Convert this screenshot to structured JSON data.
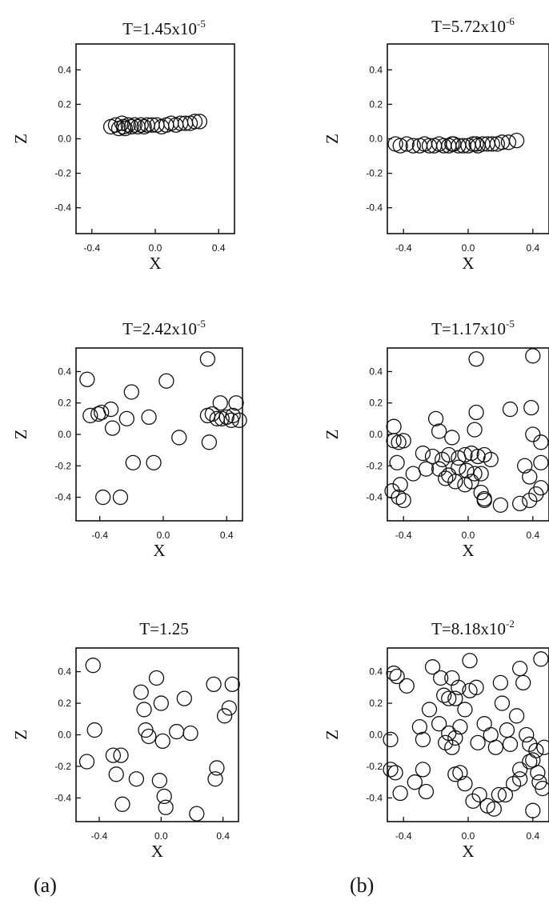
{
  "panel_labels": [
    "(a)",
    "(b)"
  ],
  "chart_data": [
    {
      "type": "scatter",
      "title_base": "T=1.45x10",
      "title_exp": "-5",
      "xlabel": "X",
      "ylabel": "Z",
      "xticks": [
        "-0.4",
        "0.0",
        "0.4"
      ],
      "yticks": [
        "0.4",
        "0.2",
        "0.0",
        "-0.2",
        "-0.4"
      ],
      "xlim": [
        -0.5,
        0.5
      ],
      "ylim": [
        -0.55,
        0.55
      ],
      "grid": false,
      "points": [
        [
          -0.28,
          0.07
        ],
        [
          -0.25,
          0.08
        ],
        [
          -0.23,
          0.06
        ],
        [
          -0.21,
          0.09
        ],
        [
          -0.19,
          0.06
        ],
        [
          -0.17,
          0.08
        ],
        [
          -0.15,
          0.07
        ],
        [
          -0.13,
          0.08
        ],
        [
          -0.11,
          0.07
        ],
        [
          -0.09,
          0.08
        ],
        [
          -0.07,
          0.07
        ],
        [
          -0.05,
          0.08
        ],
        [
          -0.02,
          0.08
        ],
        [
          0.01,
          0.08
        ],
        [
          0.04,
          0.07
        ],
        [
          0.07,
          0.08
        ],
        [
          0.1,
          0.09
        ],
        [
          0.13,
          0.08
        ],
        [
          0.16,
          0.09
        ],
        [
          0.19,
          0.09
        ],
        [
          0.22,
          0.09
        ],
        [
          0.25,
          0.1
        ],
        [
          0.28,
          0.1
        ],
        [
          -0.2,
          0.07
        ]
      ]
    },
    {
      "type": "scatter",
      "title_base": "T=5.72x10",
      "title_exp": "-6",
      "xlabel": "X",
      "ylabel": "Z",
      "xticks": [
        "-0.4",
        "0.0",
        "0.4"
      ],
      "yticks": [
        "0.4",
        "0.2",
        "0.0",
        "-0.2",
        "-0.4"
      ],
      "xlim": [
        -0.5,
        0.5
      ],
      "ylim": [
        -0.55,
        0.55
      ],
      "grid": false,
      "points": [
        [
          -0.45,
          -0.03
        ],
        [
          -0.42,
          -0.04
        ],
        [
          -0.38,
          -0.03
        ],
        [
          -0.34,
          -0.04
        ],
        [
          -0.3,
          -0.04
        ],
        [
          -0.27,
          -0.03
        ],
        [
          -0.24,
          -0.04
        ],
        [
          -0.21,
          -0.04
        ],
        [
          -0.18,
          -0.03
        ],
        [
          -0.15,
          -0.04
        ],
        [
          -0.12,
          -0.04
        ],
        [
          -0.09,
          -0.03
        ],
        [
          -0.06,
          -0.04
        ],
        [
          -0.03,
          -0.04
        ],
        [
          0.0,
          -0.04
        ],
        [
          0.03,
          -0.03
        ],
        [
          0.06,
          -0.04
        ],
        [
          0.09,
          -0.03
        ],
        [
          0.12,
          -0.03
        ],
        [
          0.15,
          -0.03
        ],
        [
          0.18,
          -0.03
        ],
        [
          0.21,
          -0.02
        ],
        [
          0.25,
          -0.02
        ],
        [
          0.3,
          -0.01
        ],
        [
          -0.1,
          -0.03
        ],
        [
          0.05,
          -0.03
        ]
      ]
    },
    {
      "type": "scatter",
      "title_base": "T=2.42x10",
      "title_exp": "-5",
      "xlabel": "X",
      "ylabel": "Z",
      "xticks": [
        "-0.4",
        "0.0",
        "0.4"
      ],
      "yticks": [
        "0.4",
        "0.2",
        "0.0",
        "-0.2",
        "-0.4"
      ],
      "xlim": [
        -0.55,
        0.5
      ],
      "ylim": [
        -0.55,
        0.55
      ],
      "grid": false,
      "points": [
        [
          -0.48,
          0.35
        ],
        [
          -0.46,
          0.12
        ],
        [
          -0.41,
          0.13
        ],
        [
          -0.39,
          0.14
        ],
        [
          -0.33,
          0.16
        ],
        [
          -0.32,
          0.04
        ],
        [
          -0.23,
          0.1
        ],
        [
          -0.2,
          0.27
        ],
        [
          -0.19,
          -0.18
        ],
        [
          -0.09,
          0.11
        ],
        [
          -0.06,
          -0.18
        ],
        [
          0.02,
          0.34
        ],
        [
          0.1,
          -0.02
        ],
        [
          0.28,
          0.48
        ],
        [
          0.28,
          0.12
        ],
        [
          0.29,
          -0.05
        ],
        [
          0.31,
          0.13
        ],
        [
          0.34,
          0.1
        ],
        [
          0.36,
          0.2
        ],
        [
          0.37,
          0.1
        ],
        [
          0.4,
          0.11
        ],
        [
          0.43,
          0.09
        ],
        [
          0.44,
          0.12
        ],
        [
          0.46,
          0.2
        ],
        [
          0.48,
          0.09
        ],
        [
          -0.38,
          -0.4
        ],
        [
          -0.27,
          -0.4
        ]
      ]
    },
    {
      "type": "scatter",
      "title_base": "T=1.17x10",
      "title_exp": "-5",
      "xlabel": "X",
      "ylabel": "Z",
      "xticks": [
        "-0.4",
        "0.0",
        "0.4"
      ],
      "yticks": [
        "0.4",
        "0.2",
        "0.0",
        "-0.2",
        "-0.4"
      ],
      "xlim": [
        -0.5,
        0.5
      ],
      "ylim": [
        -0.55,
        0.55
      ],
      "grid": false,
      "points": [
        [
          0.05,
          0.48
        ],
        [
          0.4,
          0.5
        ],
        [
          -0.2,
          0.1
        ],
        [
          0.05,
          0.14
        ],
        [
          0.26,
          0.16
        ],
        [
          0.39,
          0.17
        ],
        [
          -0.46,
          0.05
        ],
        [
          -0.46,
          -0.04
        ],
        [
          -0.43,
          -0.05
        ],
        [
          -0.4,
          -0.04
        ],
        [
          -0.18,
          0.02
        ],
        [
          -0.1,
          -0.02
        ],
        [
          0.04,
          0.03
        ],
        [
          0.4,
          0.0
        ],
        [
          0.45,
          -0.05
        ],
        [
          -0.44,
          -0.18
        ],
        [
          -0.28,
          -0.12
        ],
        [
          -0.22,
          -0.14
        ],
        [
          -0.16,
          -0.16
        ],
        [
          -0.12,
          -0.13
        ],
        [
          -0.06,
          -0.15
        ],
        [
          -0.02,
          -0.13
        ],
        [
          0.02,
          -0.12
        ],
        [
          0.06,
          -0.14
        ],
        [
          0.1,
          -0.13
        ],
        [
          0.14,
          -0.16
        ],
        [
          0.35,
          -0.2
        ],
        [
          0.45,
          -0.18
        ],
        [
          -0.34,
          -0.25
        ],
        [
          -0.26,
          -0.22
        ],
        [
          -0.18,
          -0.22
        ],
        [
          -0.12,
          -0.26
        ],
        [
          -0.06,
          -0.21
        ],
        [
          -0.01,
          -0.23
        ],
        [
          0.04,
          -0.25
        ],
        [
          0.08,
          -0.25
        ],
        [
          0.38,
          -0.27
        ],
        [
          -0.47,
          -0.36
        ],
        [
          -0.42,
          -0.32
        ],
        [
          -0.4,
          -0.42
        ],
        [
          -0.43,
          -0.4
        ],
        [
          -0.14,
          -0.28
        ],
        [
          -0.08,
          -0.3
        ],
        [
          -0.02,
          -0.32
        ],
        [
          0.02,
          -0.3
        ],
        [
          0.08,
          -0.37
        ],
        [
          0.1,
          -0.42
        ],
        [
          0.2,
          -0.45
        ],
        [
          0.32,
          -0.44
        ],
        [
          0.38,
          -0.42
        ],
        [
          0.42,
          -0.38
        ],
        [
          0.45,
          -0.34
        ],
        [
          0.1,
          -0.41
        ]
      ]
    },
    {
      "type": "scatter",
      "title_base": "T=1.25",
      "title_exp": "",
      "xlabel": "X",
      "ylabel": "Z",
      "xticks": [
        "-0.4",
        "0.0",
        "0.4"
      ],
      "yticks": [
        "0.4",
        "0.2",
        "0.0",
        "-0.2",
        "-0.4"
      ],
      "xlim": [
        -0.55,
        0.5
      ],
      "ylim": [
        -0.55,
        0.55
      ],
      "grid": false,
      "points": [
        [
          -0.44,
          0.44
        ],
        [
          -0.43,
          0.03
        ],
        [
          -0.48,
          -0.17
        ],
        [
          -0.31,
          -0.13
        ],
        [
          -0.26,
          -0.13
        ],
        [
          -0.29,
          -0.25
        ],
        [
          -0.25,
          -0.44
        ],
        [
          -0.16,
          -0.28
        ],
        [
          -0.13,
          0.27
        ],
        [
          -0.11,
          0.16
        ],
        [
          -0.1,
          0.03
        ],
        [
          -0.08,
          -0.01
        ],
        [
          -0.03,
          0.36
        ],
        [
          0.0,
          0.2
        ],
        [
          0.01,
          -0.04
        ],
        [
          -0.01,
          -0.29
        ],
        [
          0.02,
          -0.39
        ],
        [
          0.03,
          -0.46
        ],
        [
          0.1,
          0.02
        ],
        [
          0.15,
          0.23
        ],
        [
          0.19,
          0.01
        ],
        [
          0.23,
          -0.5
        ],
        [
          0.34,
          0.32
        ],
        [
          0.36,
          -0.21
        ],
        [
          0.35,
          -0.28
        ],
        [
          0.41,
          0.12
        ],
        [
          0.44,
          0.17
        ],
        [
          0.46,
          0.32
        ]
      ]
    },
    {
      "type": "scatter",
      "title_base": "T=8.18x10",
      "title_exp": "-2",
      "xlabel": "X",
      "ylabel": "Z",
      "xticks": [
        "-0.4",
        "0.0",
        "0.4"
      ],
      "yticks": [
        "0.4",
        "0.2",
        "0.0",
        "-0.2",
        "-0.4"
      ],
      "xlim": [
        -0.5,
        0.5
      ],
      "ylim": [
        -0.55,
        0.55
      ],
      "grid": false,
      "points": [
        [
          -0.46,
          0.39
        ],
        [
          -0.44,
          0.37
        ],
        [
          -0.38,
          0.31
        ],
        [
          -0.48,
          -0.03
        ],
        [
          -0.48,
          -0.22
        ],
        [
          -0.45,
          -0.24
        ],
        [
          -0.42,
          -0.37
        ],
        [
          -0.33,
          -0.3
        ],
        [
          -0.28,
          -0.22
        ],
        [
          -0.26,
          -0.36
        ],
        [
          -0.22,
          0.43
        ],
        [
          -0.17,
          0.36
        ],
        [
          -0.15,
          0.25
        ],
        [
          -0.12,
          0.23
        ],
        [
          -0.1,
          0.36
        ],
        [
          -0.08,
          0.23
        ],
        [
          -0.06,
          0.3
        ],
        [
          -0.24,
          0.16
        ],
        [
          -0.28,
          -0.03
        ],
        [
          -0.3,
          0.05
        ],
        [
          -0.18,
          0.07
        ],
        [
          -0.12,
          0.01
        ],
        [
          -0.08,
          -0.02
        ],
        [
          -0.1,
          -0.08
        ],
        [
          -0.05,
          0.05
        ],
        [
          -0.02,
          0.16
        ],
        [
          0.01,
          0.28
        ],
        [
          0.01,
          0.47
        ],
        [
          0.05,
          0.3
        ],
        [
          0.06,
          -0.05
        ],
        [
          0.1,
          0.07
        ],
        [
          0.14,
          0.0
        ],
        [
          0.17,
          -0.08
        ],
        [
          0.2,
          0.33
        ],
        [
          0.21,
          0.2
        ],
        [
          0.24,
          0.03
        ],
        [
          0.26,
          -0.06
        ],
        [
          0.3,
          0.12
        ],
        [
          0.32,
          0.42
        ],
        [
          0.34,
          0.33
        ],
        [
          0.36,
          0.0
        ],
        [
          0.38,
          -0.06
        ],
        [
          0.4,
          -0.16
        ],
        [
          0.42,
          -0.1
        ],
        [
          0.43,
          -0.24
        ],
        [
          0.45,
          0.48
        ],
        [
          0.47,
          -0.08
        ],
        [
          -0.08,
          -0.25
        ],
        [
          -0.05,
          -0.24
        ],
        [
          -0.02,
          -0.31
        ],
        [
          0.03,
          -0.42
        ],
        [
          0.07,
          -0.38
        ],
        [
          0.12,
          -0.45
        ],
        [
          0.16,
          -0.47
        ],
        [
          0.19,
          -0.38
        ],
        [
          0.23,
          -0.38
        ],
        [
          0.28,
          -0.31
        ],
        [
          0.32,
          -0.28
        ],
        [
          0.38,
          -0.17
        ],
        [
          0.44,
          -0.3
        ],
        [
          0.4,
          -0.48
        ],
        [
          0.46,
          -0.34
        ],
        [
          -0.14,
          -0.05
        ],
        [
          0.32,
          -0.22
        ]
      ]
    }
  ]
}
